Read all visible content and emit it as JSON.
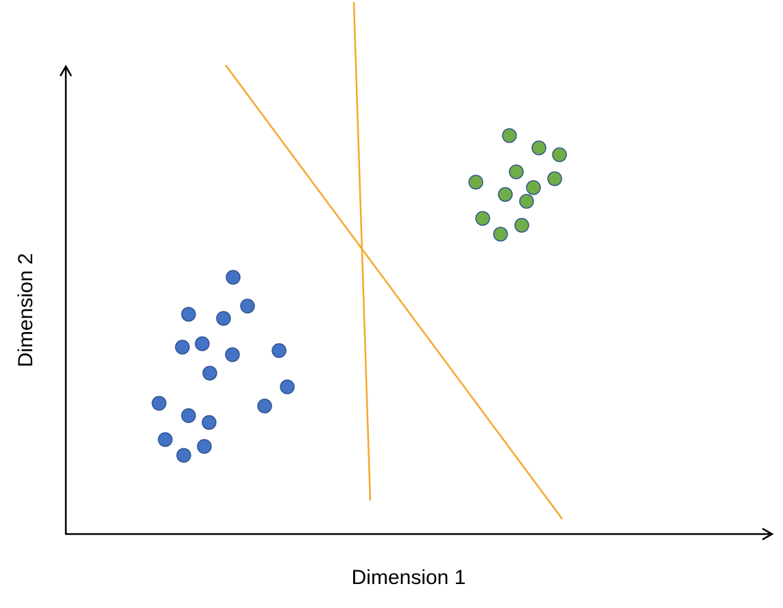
{
  "xlabel": "Dimension 1",
  "ylabel": "Dimension 2",
  "colors": {
    "axis": "#000000",
    "cluster_blue": "#4472C4",
    "cluster_blue_edge": "#2F528F",
    "cluster_green": "#70AD47",
    "cluster_green_edge": "#2F528F",
    "separator": "#F4A82A"
  },
  "clusters": [
    {
      "id": "blue-cluster",
      "color_key": "cluster_blue",
      "points": [
        [
          340,
          405
        ],
        [
          361,
          447
        ],
        [
          275,
          459
        ],
        [
          326,
          465
        ],
        [
          266,
          507
        ],
        [
          295,
          502
        ],
        [
          339,
          518
        ],
        [
          407,
          512
        ],
        [
          306,
          545
        ],
        [
          419,
          565
        ],
        [
          232,
          589
        ],
        [
          386,
          593
        ],
        [
          275,
          607
        ],
        [
          305,
          617
        ],
        [
          241,
          642
        ],
        [
          298,
          652
        ],
        [
          268,
          665
        ]
      ]
    },
    {
      "id": "green-cluster",
      "color_key": "cluster_green",
      "points": [
        [
          743,
          198
        ],
        [
          786,
          216
        ],
        [
          816,
          226
        ],
        [
          753,
          251
        ],
        [
          694,
          266
        ],
        [
          809,
          261
        ],
        [
          778,
          274
        ],
        [
          737,
          284
        ],
        [
          768,
          294
        ],
        [
          704,
          319
        ],
        [
          761,
          329
        ],
        [
          730,
          342
        ]
      ]
    }
  ],
  "separator_lines": [
    {
      "id": "separator-line-steep",
      "from": [
        516,
        3
      ],
      "to": [
        540,
        731
      ]
    },
    {
      "id": "separator-line-diagonal",
      "from": [
        329,
        95
      ],
      "to": [
        820,
        758
      ]
    }
  ]
}
